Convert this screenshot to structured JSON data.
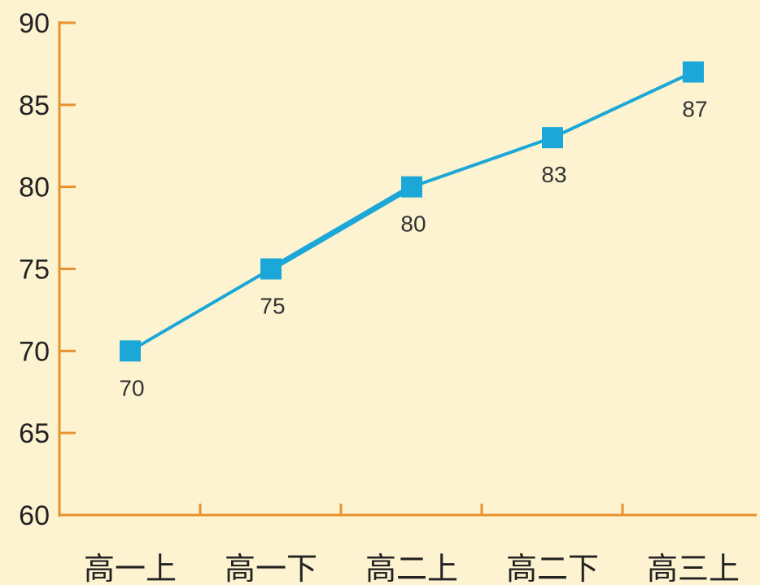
{
  "chart_data": {
    "type": "line",
    "categories": [
      "高一上",
      "高一下",
      "高二上",
      "高二下",
      "高三上"
    ],
    "values": [
      70,
      75,
      80,
      83,
      87
    ],
    "data_labels": [
      "70",
      "75",
      "80",
      "83",
      "87"
    ],
    "title": "",
    "xlabel": "",
    "ylabel": "",
    "ylim": [
      60,
      90
    ],
    "yticks": [
      "60",
      "65",
      "70",
      "75",
      "80",
      "85",
      "90"
    ],
    "grid": false,
    "legend": "none",
    "marker": "square",
    "colors": {
      "background": "#FDF3D0",
      "axis": "#E8922E",
      "series": "#1BA8D8",
      "text": "#222222"
    }
  }
}
